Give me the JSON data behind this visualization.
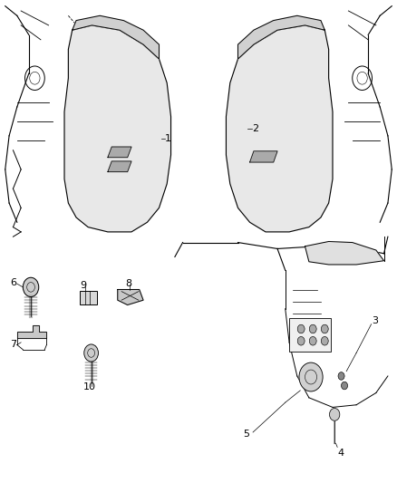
{
  "background_color": "#ffffff",
  "line_color": "#000000",
  "fig_width": 4.38,
  "fig_height": 5.33,
  "dpi": 100,
  "font_size_label": 8
}
